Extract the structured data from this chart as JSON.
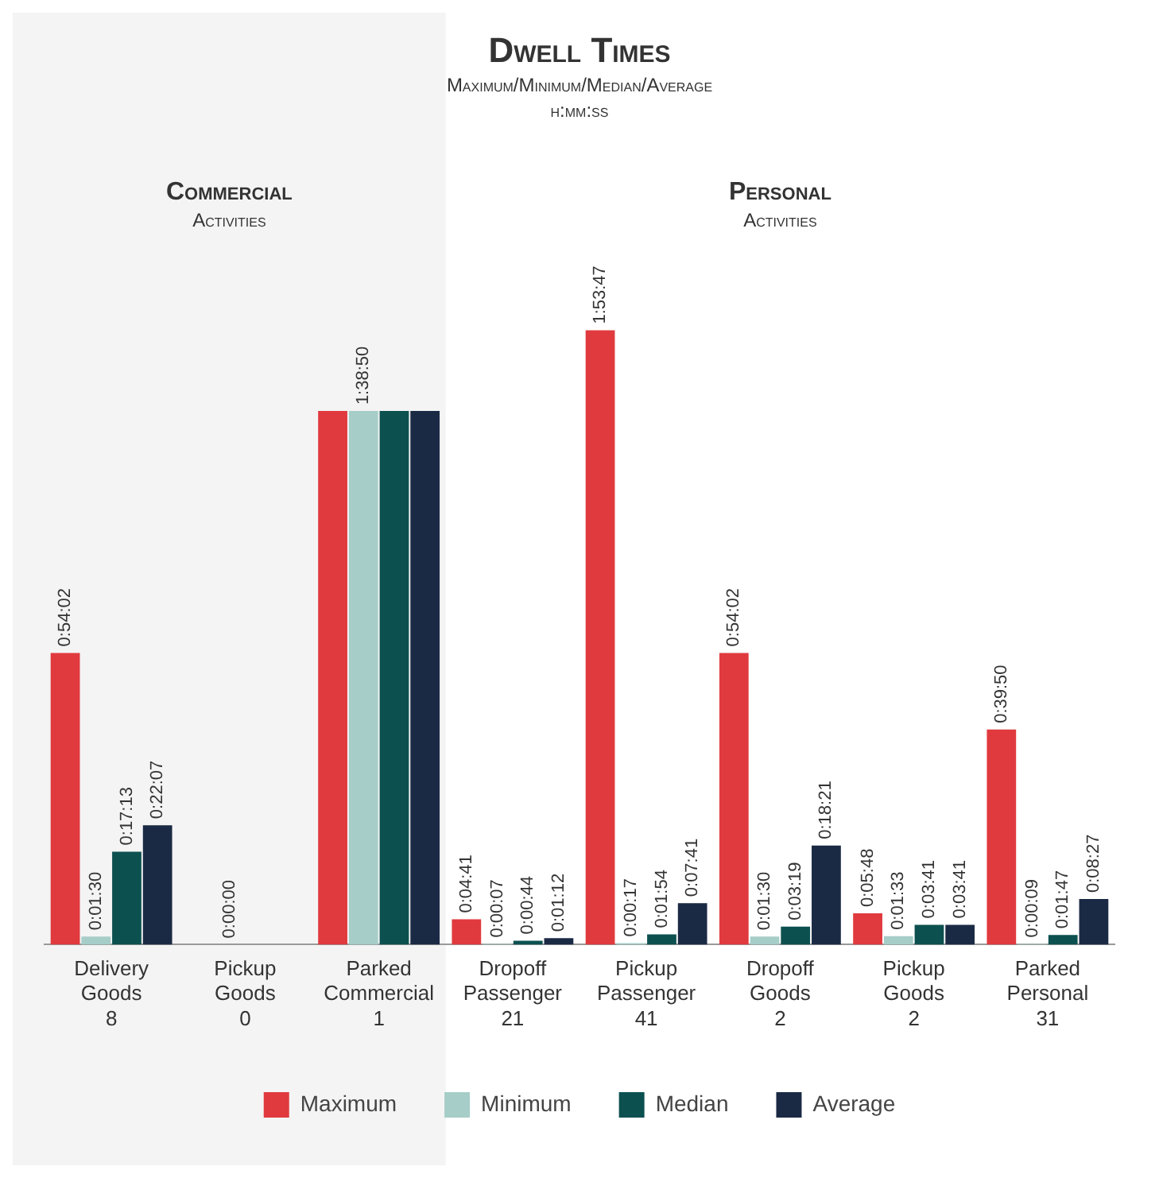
{
  "chart_data": {
    "type": "bar",
    "title": "Dwell Times",
    "subtitle": "Maximum/Minimum/Median/Average\nh:mm:ss",
    "categories": [
      "Delivery\nGoods\n8",
      "Pickup\nGoods\n0",
      "Parked\nCommercial\n1",
      "Dropoff\nPassenger\n21",
      "Pickup\nPassenger\n41",
      "Dropoff\nGoods\n2",
      "Pickup\nGoods\n2",
      "Parked\nPersonal\n31"
    ],
    "series": [
      {
        "name": "Maximum",
        "color": "#e03a3e",
        "values": [
          3242,
          0,
          5930,
          281,
          6827,
          3242,
          348,
          2390
        ],
        "value_labels": [
          "0:54:02",
          null,
          null,
          "0:04:41",
          "1:53:47",
          "0:54:02",
          "0:05:48",
          "0:39:50"
        ]
      },
      {
        "name": "Minimum",
        "color": "#a6cdc8",
        "values": [
          90,
          0,
          5930,
          7,
          17,
          90,
          93,
          9
        ],
        "value_labels": [
          "0:01:30",
          "0:00:00",
          "1:38:50",
          "0:00:07",
          "0:00:17",
          "0:01:30",
          "0:01:33",
          "0:00:09"
        ]
      },
      {
        "name": "Median",
        "color": "#0d5050",
        "values": [
          1033,
          0,
          5930,
          44,
          114,
          199,
          221,
          107
        ],
        "value_labels": [
          "0:17:13",
          null,
          null,
          "0:00:44",
          "0:01:54",
          "0:03:19",
          "0:03:41",
          "0:01:47"
        ]
      },
      {
        "name": "Average",
        "color": "#1b2a44",
        "values": [
          1327,
          0,
          5930,
          72,
          461,
          1101,
          221,
          507
        ],
        "value_labels": [
          "0:22:07",
          null,
          null,
          "0:01:12",
          "0:07:41",
          "0:18:21",
          "0:03:41",
          "0:08:27"
        ]
      }
    ],
    "bands": [
      {
        "axis": "x",
        "from": "Delivery\nGoods\n8",
        "to": "Parked\nCommercial\n1",
        "label": "Commercial\nActivities",
        "color": "#f4f4f4"
      }
    ],
    "annotations": [
      "Personal\nActivities"
    ],
    "legend": "bottom",
    "grid": false
  }
}
